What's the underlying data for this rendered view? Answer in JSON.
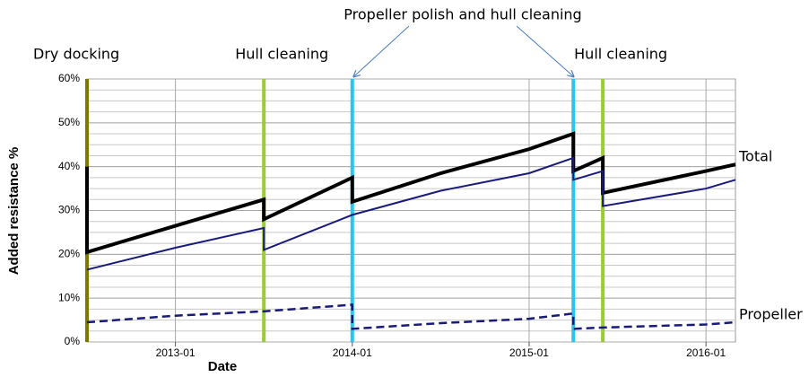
{
  "chart_data": {
    "type": "line",
    "xlabel": "Date",
    "ylabel": "Added resistance %",
    "x": [
      "2012-07",
      "2012-07",
      "2013-01",
      "2013-07",
      "2013-07",
      "2014-01",
      "2014-01",
      "2014-07",
      "2015-01",
      "2015-04",
      "2015-04",
      "2015-06",
      "2015-06",
      "2016-01",
      "2016-03"
    ],
    "series": [
      {
        "name": "Total",
        "color": "#000000",
        "width": 4,
        "dashed": false,
        "values": [
          40,
          20.5,
          26.5,
          32.5,
          28,
          37.5,
          32,
          38.5,
          44,
          47.5,
          39,
          42,
          34,
          39,
          40.5
        ]
      },
      {
        "color": "#1a1a7a",
        "width": 2,
        "dashed": false,
        "values": [
          null,
          16.5,
          21.5,
          26,
          21,
          29,
          29,
          34.5,
          38.5,
          42,
          37,
          39,
          31,
          35,
          37
        ]
      },
      {
        "name": "Propeller",
        "color": "#1a1a7a",
        "width": 2.5,
        "dashed": true,
        "values": [
          null,
          4.5,
          6,
          7,
          7,
          8.5,
          3,
          4.3,
          5.3,
          6.5,
          3,
          3.3,
          3.3,
          4,
          4.5
        ]
      }
    ],
    "xlim": [
      "2012-07",
      "2016-03"
    ],
    "xticks": [
      "2013-01",
      "2014-01",
      "2015-01",
      "2016-01"
    ],
    "ylim": [
      0,
      60
    ],
    "yticks": [
      {
        "value": 0,
        "label": "0%"
      },
      {
        "value": 10,
        "label": "10%"
      },
      {
        "value": 20,
        "label": "20%"
      },
      {
        "value": 30,
        "label": "30%"
      },
      {
        "value": 40,
        "label": "40%"
      },
      {
        "value": 50,
        "label": "50%"
      },
      {
        "value": 60,
        "label": "60%"
      }
    ],
    "minor_grid_step": 2.5,
    "grid": true,
    "events": [
      {
        "x": "2012-07",
        "color": "#7a7a00"
      },
      {
        "x": "2013-07",
        "color": "#9acd32"
      },
      {
        "x": "2014-01",
        "color": "#29c5f0"
      },
      {
        "x": "2015-04",
        "color": "#29c5f0"
      },
      {
        "x": "2015-06",
        "color": "#9acd32"
      }
    ],
    "annotations": [
      {
        "text": "Dry docking",
        "x": [
          "2012-07"
        ],
        "arrow": false
      },
      {
        "text": "Hull cleaning",
        "x": [
          "2013-07"
        ],
        "arrow": false
      },
      {
        "text": "Propeller polish and hull cleaning",
        "x": [
          "2014-01",
          "2015-04"
        ],
        "arrow": true
      },
      {
        "text": "Hull cleaning",
        "x": [
          "2015-06"
        ],
        "arrow": false
      }
    ]
  }
}
